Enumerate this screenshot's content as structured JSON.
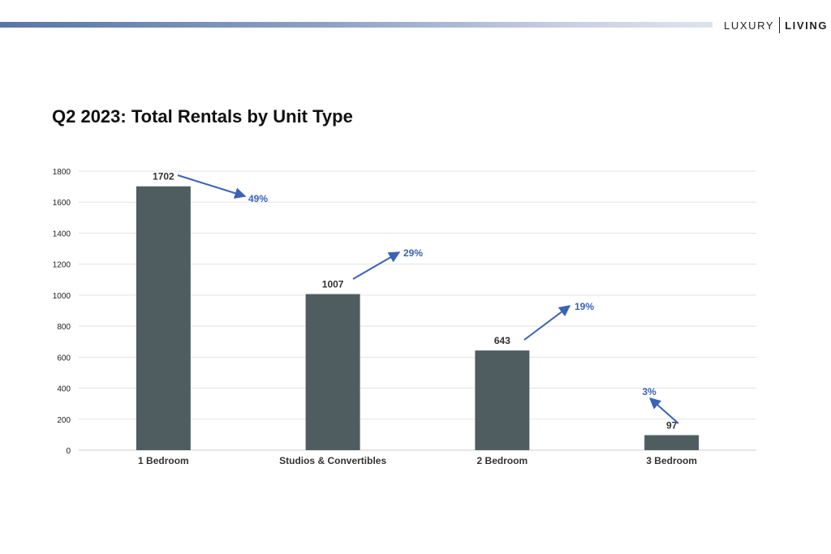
{
  "brand": {
    "left": "LUXURY",
    "right": "LIVING"
  },
  "colors": {
    "bar": "#4f5d61",
    "arrow": "#3a63b5",
    "grid": "#e3e3e3",
    "header_gradient_start": "#5876a6",
    "header_gradient_end": "#dfe3ef"
  },
  "chart_data": {
    "type": "bar",
    "title": "Q2 2023: Total Rentals by Unit Type",
    "xlabel": "",
    "ylabel": "",
    "ylim": [
      0,
      1800
    ],
    "yticks": [
      0,
      200,
      400,
      600,
      800,
      1000,
      1200,
      1400,
      1600,
      1800
    ],
    "grid": true,
    "legend": "none",
    "categories": [
      "1 Bedroom",
      "Studios & Convertibles",
      "2 Bedroom",
      "3 Bedroom"
    ],
    "values": [
      1702,
      1007,
      643,
      97
    ],
    "annotations": [
      "49%",
      "29%",
      "19%",
      "3%"
    ]
  }
}
